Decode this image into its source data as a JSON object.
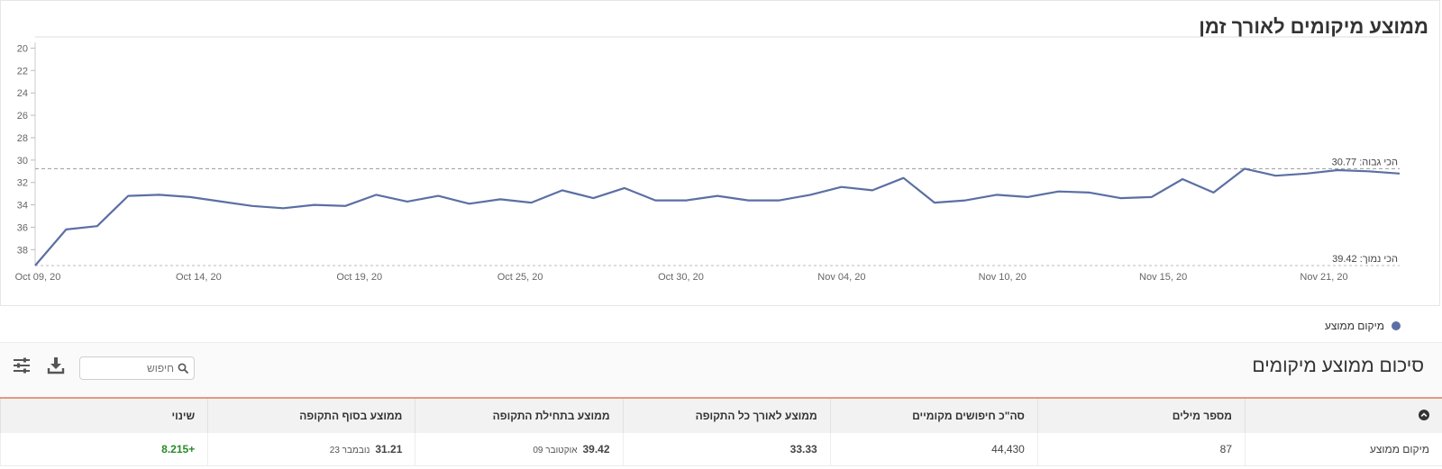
{
  "chart_title": "ממוצע מיקומים לאורך זמן",
  "chart_data": {
    "type": "line",
    "y_axis": {
      "reversed": true,
      "ylim": [
        19,
        39.42
      ],
      "ticks": [
        20,
        22,
        24,
        26,
        28,
        30,
        32,
        34,
        36,
        38
      ]
    },
    "x_ticks": [
      "Oct 09, 20",
      "Oct 14, 20",
      "Oct 19, 20",
      "Oct 25, 20",
      "Oct 30, 20",
      "Nov 04, 20",
      "Nov 10, 20",
      "Nov 15, 20",
      "Nov 21, 20"
    ],
    "series": [
      {
        "name": "מיקום ממוצע",
        "color": "#5b6fa4",
        "values": [
          39.42,
          36.2,
          35.9,
          33.2,
          33.1,
          33.3,
          33.7,
          34.1,
          34.3,
          34.0,
          34.1,
          33.1,
          33.7,
          33.2,
          33.9,
          33.5,
          33.8,
          32.7,
          33.4,
          32.5,
          33.6,
          33.6,
          33.2,
          33.6,
          33.6,
          33.1,
          32.4,
          32.7,
          31.6,
          33.8,
          33.6,
          33.1,
          33.3,
          32.8,
          32.9,
          33.4,
          33.3,
          31.7,
          32.9,
          30.77,
          31.4,
          31.2,
          30.9,
          31.0,
          31.2
        ]
      }
    ],
    "max_line": {
      "label": "הכי גבוה: 30.77",
      "value": 30.77
    },
    "min_line": {
      "label": "הכי נמוך: 39.42",
      "value": 39.42
    },
    "grid": false,
    "legend_position": "bottom-right"
  },
  "legend": {
    "label": "מיקום ממוצע",
    "color": "#5b6fa4"
  },
  "summary": {
    "title": "סיכום ממוצע מיקומים",
    "search_placeholder": "חיפוש",
    "download_icon": "download-icon",
    "settings_icon": "sliders-icon"
  },
  "table": {
    "headers": [
      "מספר מילים",
      "סה\"כ חיפושים מקומיים",
      "ממוצע לאורך כל התקופה",
      "ממוצע בתחילת התקופה",
      "ממוצע בסוף התקופה",
      "שינוי"
    ],
    "row": {
      "label": "מיקום ממוצע",
      "words": "87",
      "searches": "44,430",
      "avg_all": "33.33",
      "avg_start": "39.42",
      "start_date": "אוקטובר 09",
      "avg_end": "31.21",
      "end_date": "נובמבר 23",
      "change": "+8.215",
      "change_color": "#2a8a2a"
    }
  }
}
